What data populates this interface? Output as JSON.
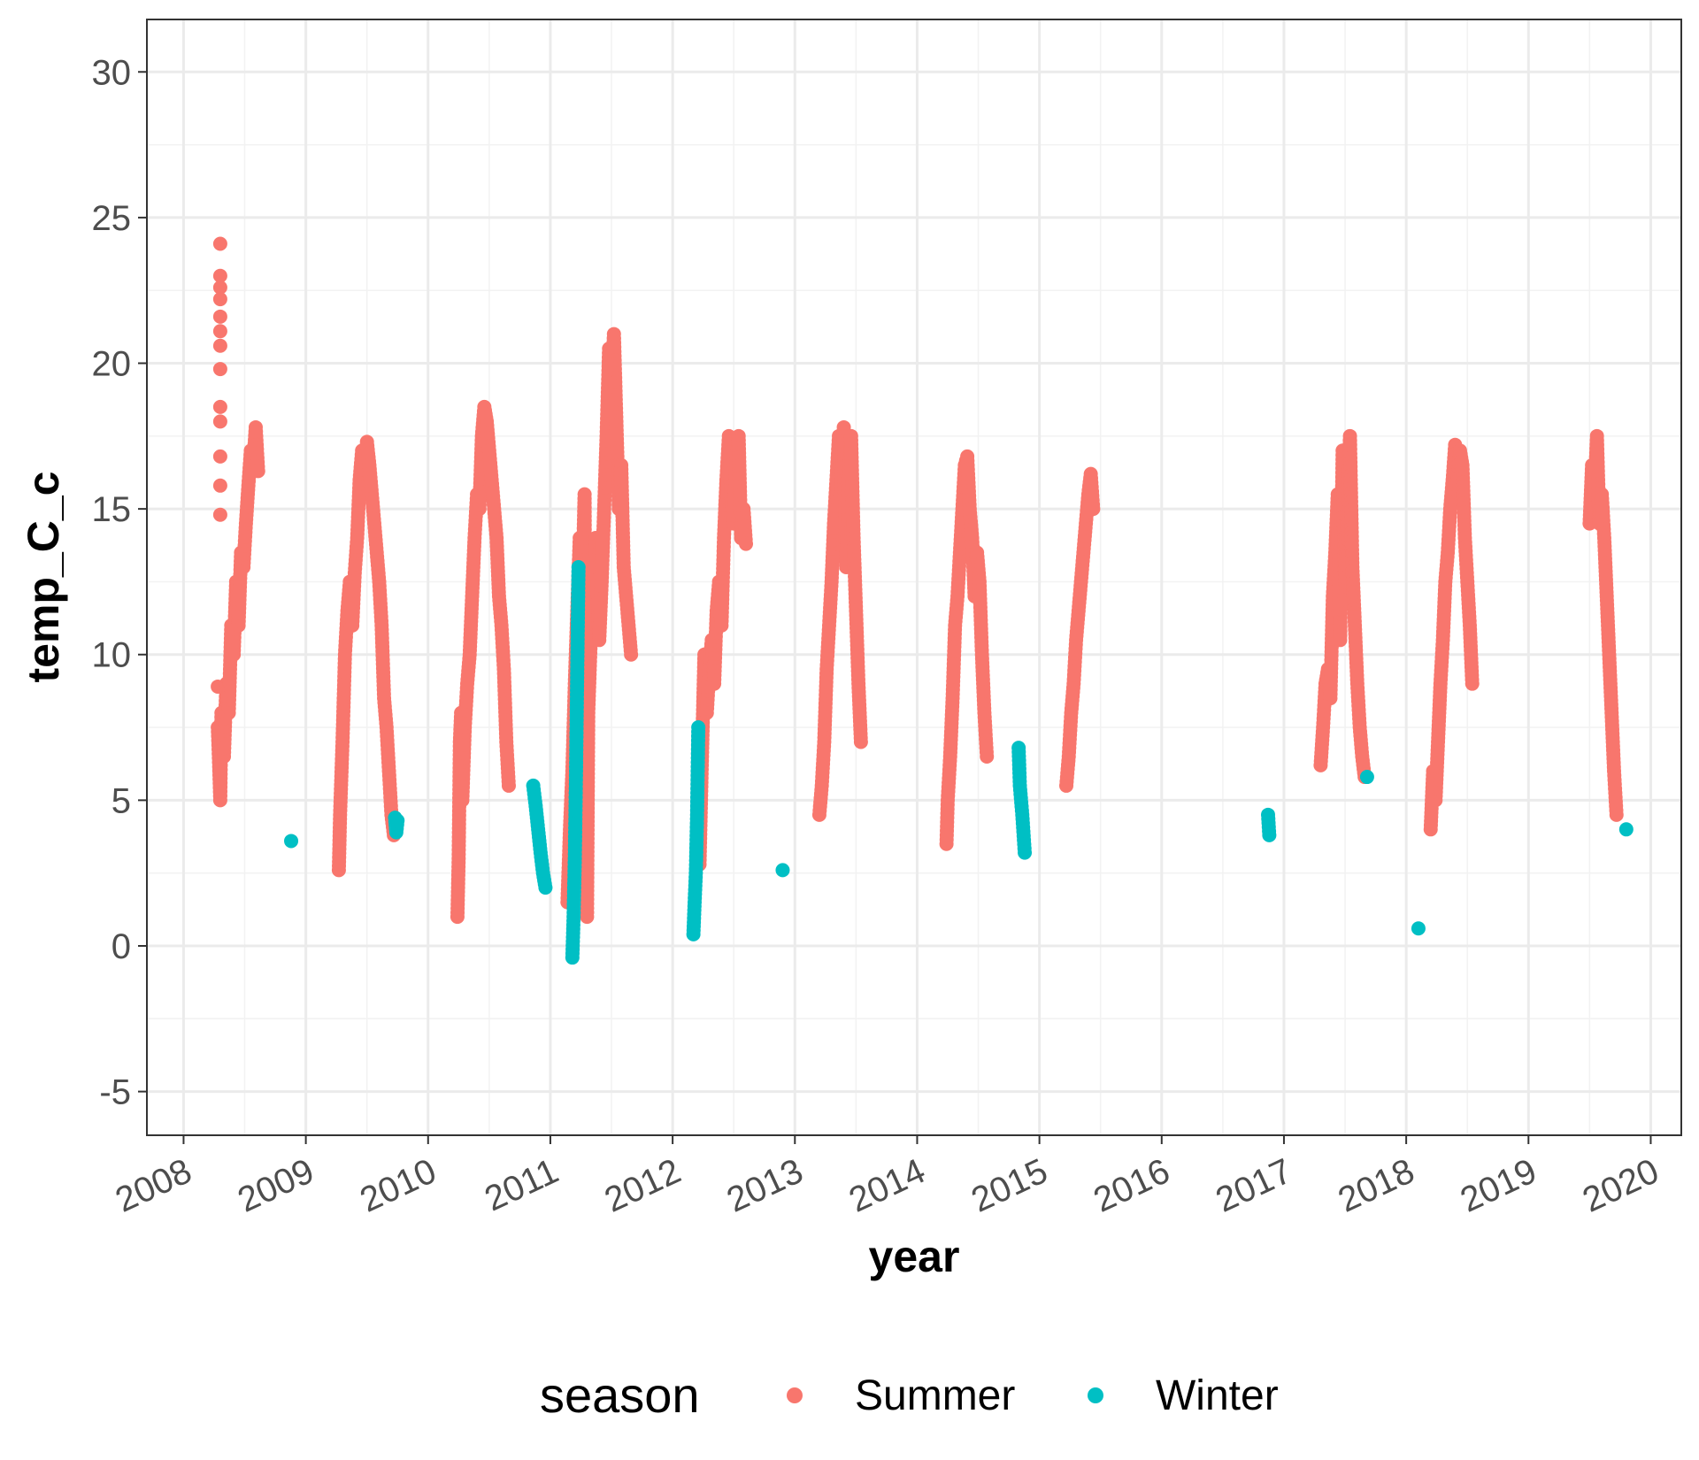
{
  "chart_data": {
    "type": "scatter",
    "xlabel": "year",
    "ylabel": "temp_C_c",
    "xlim": [
      2007.7,
      2020.25
    ],
    "ylim": [
      -6.5,
      31.8
    ],
    "x_ticks": [
      "2008",
      "2009",
      "2010",
      "2011",
      "2012",
      "2013",
      "2014",
      "2015",
      "2016",
      "2017",
      "2018",
      "2019",
      "2020"
    ],
    "y_ticks": [
      "-5",
      "0",
      "5",
      "10",
      "15",
      "20",
      "25",
      "30"
    ],
    "grid": true,
    "legend": {
      "title": "season",
      "position": "bottom"
    },
    "series": [
      {
        "name": "Summer",
        "color": "#F8766D",
        "points": [
          [
            2008.3,
            24.1
          ],
          [
            2008.3,
            23.0
          ],
          [
            2008.3,
            22.6
          ],
          [
            2008.3,
            22.2
          ],
          [
            2008.3,
            21.6
          ],
          [
            2008.3,
            21.1
          ],
          [
            2008.3,
            20.6
          ],
          [
            2008.3,
            19.8
          ],
          [
            2008.3,
            18.5
          ],
          [
            2008.3,
            18.0
          ],
          [
            2008.3,
            16.8
          ],
          [
            2008.3,
            15.8
          ],
          [
            2008.3,
            14.8
          ],
          [
            2008.28,
            8.9
          ],
          [
            2008.28,
            7.5
          ],
          [
            2008.29,
            6.3
          ],
          [
            2008.3,
            5.0
          ],
          [
            2008.31,
            8.0
          ],
          [
            2008.33,
            6.5
          ],
          [
            2008.35,
            9.0
          ],
          [
            2008.37,
            8.0
          ],
          [
            2008.39,
            11.0
          ],
          [
            2008.41,
            10.0
          ],
          [
            2008.43,
            12.5
          ],
          [
            2008.45,
            11.0
          ],
          [
            2008.47,
            13.5
          ],
          [
            2008.49,
            13.0
          ],
          [
            2008.51,
            14.5
          ],
          [
            2008.53,
            15.8
          ],
          [
            2008.55,
            17.0
          ],
          [
            2008.57,
            16.5
          ],
          [
            2008.59,
            17.8
          ],
          [
            2008.61,
            16.3
          ],
          [
            2009.27,
            2.6
          ],
          [
            2009.28,
            4.5
          ],
          [
            2009.3,
            7.0
          ],
          [
            2009.32,
            10.0
          ],
          [
            2009.34,
            11.5
          ],
          [
            2009.36,
            12.5
          ],
          [
            2009.38,
            11.0
          ],
          [
            2009.4,
            12.8
          ],
          [
            2009.42,
            14.0
          ],
          [
            2009.44,
            16.0
          ],
          [
            2009.46,
            17.0
          ],
          [
            2009.48,
            16.2
          ],
          [
            2009.5,
            17.3
          ],
          [
            2009.52,
            16.5
          ],
          [
            2009.54,
            15.5
          ],
          [
            2009.56,
            14.5
          ],
          [
            2009.58,
            13.5
          ],
          [
            2009.6,
            12.5
          ],
          [
            2009.62,
            11.0
          ],
          [
            2009.64,
            8.5
          ],
          [
            2009.66,
            7.5
          ],
          [
            2009.68,
            6.0
          ],
          [
            2009.7,
            4.5
          ],
          [
            2009.72,
            3.8
          ],
          [
            2010.24,
            1.0
          ],
          [
            2010.25,
            3.0
          ],
          [
            2010.26,
            7.0
          ],
          [
            2010.27,
            8.0
          ],
          [
            2010.28,
            5.0
          ],
          [
            2010.3,
            7.5
          ],
          [
            2010.32,
            9.0
          ],
          [
            2010.34,
            10.0
          ],
          [
            2010.36,
            12.0
          ],
          [
            2010.38,
            14.0
          ],
          [
            2010.4,
            15.5
          ],
          [
            2010.42,
            15.0
          ],
          [
            2010.44,
            17.5
          ],
          [
            2010.46,
            18.5
          ],
          [
            2010.48,
            18.0
          ],
          [
            2010.5,
            17.0
          ],
          [
            2010.52,
            16.0
          ],
          [
            2010.54,
            15.0
          ],
          [
            2010.56,
            14.0
          ],
          [
            2010.58,
            12.0
          ],
          [
            2010.6,
            11.0
          ],
          [
            2010.62,
            9.5
          ],
          [
            2010.64,
            7.0
          ],
          [
            2010.66,
            5.5
          ],
          [
            2011.14,
            1.5
          ],
          [
            2011.16,
            4.0
          ],
          [
            2011.18,
            6.0
          ],
          [
            2011.2,
            9.0
          ],
          [
            2011.22,
            11.5
          ],
          [
            2011.24,
            14.0
          ],
          [
            2011.26,
            12.0
          ],
          [
            2011.28,
            15.5
          ],
          [
            2011.29,
            3.0
          ],
          [
            2011.3,
            1.0
          ],
          [
            2011.31,
            8.0
          ],
          [
            2011.33,
            10.5
          ],
          [
            2011.35,
            11.5
          ],
          [
            2011.37,
            14.0
          ],
          [
            2011.39,
            12.0
          ],
          [
            2011.4,
            10.5
          ],
          [
            2011.42,
            12.5
          ],
          [
            2011.44,
            15.0
          ],
          [
            2011.46,
            17.5
          ],
          [
            2011.48,
            20.5
          ],
          [
            2011.5,
            19.0
          ],
          [
            2011.52,
            21.0
          ],
          [
            2011.54,
            18.0
          ],
          [
            2011.56,
            15.0
          ],
          [
            2011.58,
            16.5
          ],
          [
            2011.6,
            13.0
          ],
          [
            2011.62,
            12.0
          ],
          [
            2011.64,
            11.0
          ],
          [
            2011.66,
            10.0
          ],
          [
            2012.22,
            2.8
          ],
          [
            2012.24,
            6.5
          ],
          [
            2012.26,
            10.0
          ],
          [
            2012.28,
            8.0
          ],
          [
            2012.3,
            9.5
          ],
          [
            2012.32,
            10.5
          ],
          [
            2012.34,
            9.0
          ],
          [
            2012.36,
            11.5
          ],
          [
            2012.38,
            12.5
          ],
          [
            2012.4,
            11.0
          ],
          [
            2012.42,
            14.0
          ],
          [
            2012.44,
            16.0
          ],
          [
            2012.46,
            17.5
          ],
          [
            2012.48,
            15.5
          ],
          [
            2012.5,
            14.5
          ],
          [
            2012.52,
            16.5
          ],
          [
            2012.54,
            17.5
          ],
          [
            2012.56,
            14.0
          ],
          [
            2012.58,
            15.0
          ],
          [
            2012.6,
            13.8
          ],
          [
            2013.2,
            4.5
          ],
          [
            2013.22,
            5.5
          ],
          [
            2013.24,
            7.0
          ],
          [
            2013.26,
            9.5
          ],
          [
            2013.28,
            11.0
          ],
          [
            2013.3,
            12.5
          ],
          [
            2013.32,
            14.5
          ],
          [
            2013.34,
            16.0
          ],
          [
            2013.36,
            17.5
          ],
          [
            2013.38,
            15.5
          ],
          [
            2013.4,
            17.8
          ],
          [
            2013.42,
            13.0
          ],
          [
            2013.44,
            15.5
          ],
          [
            2013.46,
            17.5
          ],
          [
            2013.48,
            14.0
          ],
          [
            2013.5,
            11.5
          ],
          [
            2013.52,
            9.0
          ],
          [
            2013.54,
            7.0
          ],
          [
            2014.24,
            3.5
          ],
          [
            2014.25,
            5.0
          ],
          [
            2014.27,
            6.5
          ],
          [
            2014.29,
            8.5
          ],
          [
            2014.31,
            11.0
          ],
          [
            2014.33,
            12.0
          ],
          [
            2014.35,
            13.5
          ],
          [
            2014.37,
            15.0
          ],
          [
            2014.39,
            16.5
          ],
          [
            2014.41,
            16.8
          ],
          [
            2014.43,
            15.0
          ],
          [
            2014.45,
            14.0
          ],
          [
            2014.47,
            12.0
          ],
          [
            2014.49,
            13.5
          ],
          [
            2014.51,
            12.5
          ],
          [
            2014.53,
            10.0
          ],
          [
            2014.55,
            8.0
          ],
          [
            2014.57,
            6.5
          ],
          [
            2015.22,
            5.5
          ],
          [
            2015.24,
            6.5
          ],
          [
            2015.26,
            8.0
          ],
          [
            2015.28,
            9.0
          ],
          [
            2015.3,
            10.5
          ],
          [
            2015.32,
            11.5
          ],
          [
            2015.34,
            12.5
          ],
          [
            2015.36,
            13.5
          ],
          [
            2015.38,
            14.5
          ],
          [
            2015.4,
            15.5
          ],
          [
            2015.42,
            16.2
          ],
          [
            2015.44,
            15.0
          ],
          [
            2017.3,
            6.2
          ],
          [
            2017.32,
            7.5
          ],
          [
            2017.34,
            9.0
          ],
          [
            2017.36,
            9.5
          ],
          [
            2017.38,
            8.5
          ],
          [
            2017.4,
            12.0
          ],
          [
            2017.42,
            13.5
          ],
          [
            2017.44,
            15.5
          ],
          [
            2017.46,
            10.5
          ],
          [
            2017.48,
            17.0
          ],
          [
            2017.5,
            12.5
          ],
          [
            2017.52,
            15.0
          ],
          [
            2017.54,
            17.5
          ],
          [
            2017.56,
            13.0
          ],
          [
            2017.58,
            11.0
          ],
          [
            2017.6,
            9.0
          ],
          [
            2017.62,
            7.5
          ],
          [
            2017.64,
            6.5
          ],
          [
            2017.66,
            5.8
          ],
          [
            2018.2,
            4.0
          ],
          [
            2018.22,
            6.0
          ],
          [
            2018.24,
            5.0
          ],
          [
            2018.26,
            7.0
          ],
          [
            2018.28,
            9.0
          ],
          [
            2018.3,
            10.5
          ],
          [
            2018.32,
            12.5
          ],
          [
            2018.34,
            13.5
          ],
          [
            2018.36,
            15.0
          ],
          [
            2018.38,
            16.0
          ],
          [
            2018.4,
            17.2
          ],
          [
            2018.42,
            16.0
          ],
          [
            2018.44,
            17.0
          ],
          [
            2018.46,
            16.5
          ],
          [
            2018.48,
            14.0
          ],
          [
            2018.5,
            12.5
          ],
          [
            2018.52,
            11.0
          ],
          [
            2018.54,
            9.0
          ],
          [
            2019.5,
            14.5
          ],
          [
            2019.52,
            16.5
          ],
          [
            2019.54,
            15.5
          ],
          [
            2019.56,
            17.5
          ],
          [
            2019.58,
            14.5
          ],
          [
            2019.6,
            15.5
          ],
          [
            2019.62,
            14.0
          ],
          [
            2019.64,
            12.0
          ],
          [
            2019.66,
            10.0
          ],
          [
            2019.68,
            8.0
          ],
          [
            2019.7,
            6.0
          ],
          [
            2019.72,
            4.5
          ]
        ]
      },
      {
        "name": "Winter",
        "color": "#00BFC4",
        "points": [
          [
            2008.88,
            3.6
          ],
          [
            2009.73,
            4.4
          ],
          [
            2009.74,
            3.9
          ],
          [
            2009.75,
            4.3
          ],
          [
            2010.86,
            5.5
          ],
          [
            2010.88,
            4.8
          ],
          [
            2010.9,
            4.0
          ],
          [
            2010.92,
            3.2
          ],
          [
            2010.94,
            2.5
          ],
          [
            2010.96,
            2.0
          ],
          [
            2011.18,
            -0.4
          ],
          [
            2011.19,
            1.0
          ],
          [
            2011.2,
            3.0
          ],
          [
            2011.21,
            6.0
          ],
          [
            2011.22,
            9.5
          ],
          [
            2011.23,
            13.0
          ],
          [
            2012.17,
            0.4
          ],
          [
            2012.18,
            1.5
          ],
          [
            2012.19,
            2.5
          ],
          [
            2012.2,
            4.5
          ],
          [
            2012.21,
            7.5
          ],
          [
            2012.9,
            2.6
          ],
          [
            2014.83,
            6.8
          ],
          [
            2014.84,
            5.5
          ],
          [
            2014.86,
            4.5
          ],
          [
            2014.88,
            3.2
          ],
          [
            2016.87,
            4.5
          ],
          [
            2016.88,
            3.8
          ],
          [
            2017.68,
            5.8
          ],
          [
            2018.1,
            0.6
          ],
          [
            2019.8,
            4.0
          ]
        ]
      }
    ]
  }
}
